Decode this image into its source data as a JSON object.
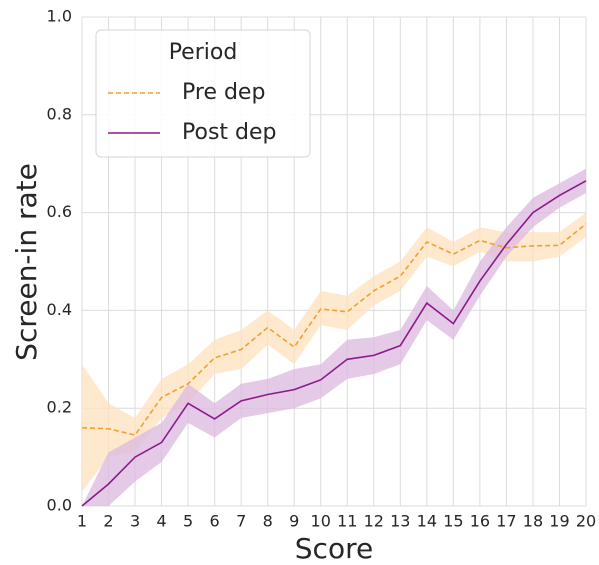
{
  "chart_data": {
    "type": "line",
    "xlabel": "Score",
    "ylabel": "Screen-in rate",
    "legend_title": "Period",
    "legend": "upper left",
    "grid": true,
    "x": [
      1,
      2,
      3,
      4,
      5,
      6,
      7,
      8,
      9,
      10,
      11,
      12,
      13,
      14,
      15,
      16,
      17,
      18,
      19,
      20
    ],
    "xlim": [
      1,
      20
    ],
    "xticks": [
      1,
      2,
      3,
      4,
      5,
      6,
      7,
      8,
      9,
      10,
      11,
      12,
      13,
      14,
      15,
      16,
      17,
      18,
      19,
      20
    ],
    "ylim": [
      0,
      1
    ],
    "yticks": [
      {
        "value": 0,
        "label": "0.0"
      },
      {
        "value": 0.2,
        "label": "0.2"
      },
      {
        "value": 0.4,
        "label": "0.4"
      },
      {
        "value": 0.6,
        "label": "0.6"
      },
      {
        "value": 0.8,
        "label": "0.8"
      },
      {
        "value": 1,
        "label": "1.0"
      }
    ],
    "series": [
      {
        "name": "Pre dep",
        "color": "#f0a030",
        "band_color": "#ffe2bd",
        "dash": true,
        "values": [
          0.16,
          0.158,
          0.145,
          0.222,
          0.25,
          0.303,
          0.32,
          0.365,
          0.325,
          0.403,
          0.397,
          0.44,
          0.47,
          0.54,
          0.515,
          0.543,
          0.528,
          0.532,
          0.533,
          0.577
        ],
        "lower": [
          0.03,
          0.1,
          0.11,
          0.18,
          0.21,
          0.27,
          0.28,
          0.33,
          0.29,
          0.37,
          0.36,
          0.41,
          0.44,
          0.51,
          0.49,
          0.52,
          0.5,
          0.5,
          0.51,
          0.55
        ],
        "upper": [
          0.29,
          0.21,
          0.18,
          0.26,
          0.29,
          0.34,
          0.36,
          0.4,
          0.36,
          0.44,
          0.43,
          0.47,
          0.5,
          0.57,
          0.54,
          0.57,
          0.56,
          0.56,
          0.56,
          0.6
        ]
      },
      {
        "name": "Post dep",
        "color": "#8b1a8b",
        "band_color": "#dcb8df",
        "dash": false,
        "values": [
          0.0,
          0.045,
          0.1,
          0.13,
          0.21,
          0.178,
          0.215,
          0.228,
          0.238,
          0.258,
          0.3,
          0.308,
          0.328,
          0.415,
          0.373,
          0.46,
          0.535,
          0.6,
          0.635,
          0.665
        ],
        "lower": [
          0.0,
          0.0,
          0.05,
          0.09,
          0.17,
          0.14,
          0.18,
          0.19,
          0.2,
          0.22,
          0.26,
          0.27,
          0.29,
          0.38,
          0.34,
          0.43,
          0.51,
          0.57,
          0.61,
          0.64
        ],
        "upper": [
          0.0,
          0.11,
          0.14,
          0.17,
          0.25,
          0.21,
          0.25,
          0.26,
          0.28,
          0.29,
          0.34,
          0.345,
          0.36,
          0.45,
          0.4,
          0.5,
          0.57,
          0.63,
          0.66,
          0.69
        ]
      }
    ]
  }
}
